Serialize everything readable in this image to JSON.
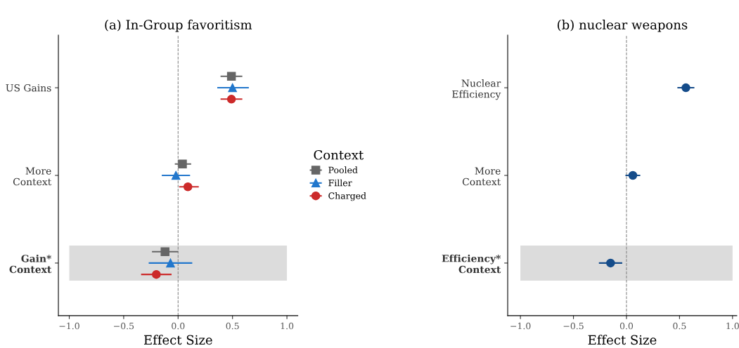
{
  "chart_data": [
    {
      "type": "scatter",
      "orientation": "horizontal",
      "title": "(a) In-Group favoritism",
      "xlabel": "Effect Size",
      "categories": [
        "US Gains",
        "More\nContext",
        "Gain*\nContext"
      ],
      "xlim": [
        -1.1,
        1.1
      ],
      "xticks": [
        {
          "value": -1.0,
          "label": "−1.0"
        },
        {
          "value": -0.5,
          "label": "−0.5"
        },
        {
          "value": 0.0,
          "label": "0.0"
        },
        {
          "value": 0.5,
          "label": "0.5"
        },
        {
          "value": 1.0,
          "label": "1.0"
        }
      ],
      "legend": "right",
      "legend_title": "Context",
      "grid": false,
      "ref_lines": [
        {
          "axis": "x",
          "value": 0,
          "color": "#888888",
          "line_style": "dashed"
        }
      ],
      "bands": [
        {
          "axis": "y",
          "from": "Gain*\nContext",
          "to": "Gain*\nContext",
          "color": "#dcdcdc"
        }
      ],
      "series": [
        {
          "name": "Pooled",
          "color": "#666666",
          "marker": "square",
          "values": [
            0.49,
            0.04,
            -0.12
          ],
          "errors": [
            [
              0.39,
              0.59
            ],
            [
              -0.03,
              0.12
            ],
            [
              -0.24,
              0.0
            ]
          ]
        },
        {
          "name": "Filler",
          "color": "#2277cc",
          "marker": "triangle",
          "values": [
            0.5,
            -0.02,
            -0.07
          ],
          "errors": [
            [
              0.36,
              0.65
            ],
            [
              -0.15,
              0.11
            ],
            [
              -0.27,
              0.13
            ]
          ]
        },
        {
          "name": "Charged",
          "color": "#cc2a2a",
          "marker": "circle",
          "values": [
            0.49,
            0.09,
            -0.2
          ],
          "errors": [
            [
              0.39,
              0.59
            ],
            [
              0.01,
              0.19
            ],
            [
              -0.34,
              -0.06
            ]
          ]
        }
      ]
    },
    {
      "type": "scatter",
      "orientation": "horizontal",
      "title": "(b) nuclear weapons",
      "xlabel": "Effect Size",
      "categories": [
        "Nuclear\nEfficiency",
        "More\nContext",
        "Efficiency*\nContext"
      ],
      "xlim": [
        -1.12,
        1.04
      ],
      "xticks": [
        {
          "value": -1.0,
          "label": "−1.0"
        },
        {
          "value": -0.5,
          "label": "−0.5"
        },
        {
          "value": 0.0,
          "label": "0.0"
        },
        {
          "value": 0.5,
          "label": "0.5"
        },
        {
          "value": 1.0,
          "label": "1.0"
        }
      ],
      "grid": false,
      "ref_lines": [
        {
          "axis": "x",
          "value": 0,
          "color": "#888888",
          "line_style": "dashed"
        }
      ],
      "bands": [
        {
          "axis": "y",
          "from": "Efficiency*\nContext",
          "to": "Efficiency*\nContext",
          "color": "#dcdcdc"
        }
      ],
      "series": [
        {
          "color": "#154c8a",
          "marker": "circle",
          "values": [
            0.56,
            0.06,
            -0.15
          ],
          "errors": [
            [
              0.48,
              0.64
            ],
            [
              -0.01,
              0.13
            ],
            [
              -0.26,
              -0.04
            ]
          ]
        }
      ]
    }
  ]
}
